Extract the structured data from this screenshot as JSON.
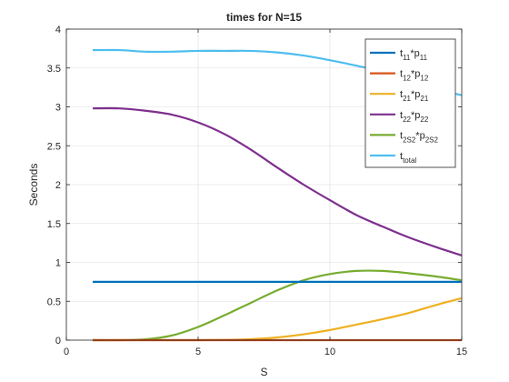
{
  "chart_data": {
    "type": "line",
    "title": "times for N=15",
    "xlabel": "S",
    "ylabel": "Seconds",
    "xlim": [
      0,
      15
    ],
    "ylim": [
      0,
      4
    ],
    "xticks": [
      0,
      5,
      10,
      15
    ],
    "yticks": [
      0,
      0.5,
      1,
      1.5,
      2,
      2.5,
      3,
      3.5,
      4
    ],
    "xtick_labels": [
      "0",
      "5",
      "10",
      "15"
    ],
    "ytick_labels": [
      "0",
      "0.5",
      "1",
      "1.5",
      "2",
      "2.5",
      "3",
      "3.5",
      "4"
    ],
    "grid": true,
    "legend_position": "top-right",
    "x": [
      1,
      2,
      3,
      4,
      5,
      6,
      7,
      8,
      9,
      10,
      11,
      12,
      13,
      14,
      15
    ],
    "series": [
      {
        "legend": {
          "base": "t",
          "sub1": "11",
          "mid": "*p",
          "sub2": "11"
        },
        "color": "#0072BD",
        "values": [
          0.75,
          0.75,
          0.75,
          0.75,
          0.75,
          0.75,
          0.75,
          0.75,
          0.75,
          0.75,
          0.75,
          0.75,
          0.75,
          0.75,
          0.75
        ]
      },
      {
        "legend": {
          "base": "t",
          "sub1": "12",
          "mid": "*p",
          "sub2": "12"
        },
        "color": "#D95319",
        "values": [
          0,
          0,
          0,
          0,
          0,
          0,
          0,
          0,
          0,
          0,
          0,
          0,
          0,
          0,
          0
        ]
      },
      {
        "legend": {
          "base": "t",
          "sub1": "21",
          "mid": "*p",
          "sub2": "21"
        },
        "color": "#EDB120",
        "values": [
          0,
          0,
          0,
          0,
          0,
          0.003,
          0.012,
          0.035,
          0.075,
          0.13,
          0.2,
          0.27,
          0.35,
          0.45,
          0.54
        ]
      },
      {
        "legend": {
          "base": "t",
          "sub1": "22",
          "mid": "*p",
          "sub2": "22"
        },
        "color": "#7E2F8E",
        "values": [
          2.98,
          2.98,
          2.95,
          2.9,
          2.8,
          2.65,
          2.45,
          2.22,
          2.0,
          1.8,
          1.61,
          1.46,
          1.32,
          1.2,
          1.09
        ]
      },
      {
        "legend": {
          "base": "t",
          "sub1": "2S2",
          "mid": "*p",
          "sub2": "2S2"
        },
        "color": "#77AC30",
        "values": [
          0,
          0,
          0.01,
          0.06,
          0.17,
          0.32,
          0.48,
          0.64,
          0.77,
          0.85,
          0.89,
          0.89,
          0.86,
          0.82,
          0.77
        ]
      },
      {
        "legend": {
          "base": "t",
          "sub1": "total",
          "mid": "",
          "sub2": ""
        },
        "color": "#4DBEEE",
        "values": [
          3.73,
          3.73,
          3.71,
          3.71,
          3.72,
          3.72,
          3.72,
          3.7,
          3.66,
          3.6,
          3.53,
          3.45,
          3.33,
          3.23,
          3.15
        ]
      }
    ]
  }
}
